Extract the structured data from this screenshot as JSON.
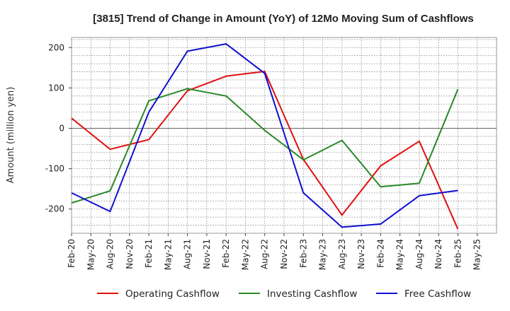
{
  "chart_data": {
    "type": "line",
    "title": "[3815]  Trend of Change in Amount (YoY) of 12Mo Moving Sum of Cashflows",
    "xlabel": "",
    "ylabel": "Amount (million yen)",
    "categories": [
      "Feb-20",
      "May-20",
      "Aug-20",
      "Nov-20",
      "Feb-21",
      "May-21",
      "Aug-21",
      "Nov-21",
      "Feb-22",
      "May-22",
      "Aug-22",
      "Nov-22",
      "Feb-23",
      "May-23",
      "Aug-23",
      "Nov-23",
      "Feb-24",
      "May-24",
      "Aug-24",
      "Nov-24",
      "Feb-25",
      "May-25"
    ],
    "yticks": [
      "200",
      "100",
      "0",
      "-100",
      "-200"
    ],
    "ylim": [
      -260,
      225
    ],
    "grid": true,
    "legend_position": "bottom",
    "series": [
      {
        "name": "Operating Cashflow",
        "color": "#e01010",
        "values": [
          25,
          null,
          -52,
          null,
          -28,
          null,
          93,
          null,
          129,
          null,
          141,
          null,
          -77,
          null,
          -215,
          null,
          -93,
          null,
          -32,
          null,
          -250,
          null
        ]
      },
      {
        "name": "Investing Cashflow",
        "color": "#2a8a2a",
        "values": [
          -185,
          null,
          -155,
          null,
          68,
          null,
          98,
          null,
          80,
          null,
          -5,
          null,
          -78,
          null,
          -30,
          null,
          -145,
          null,
          -136,
          null,
          97,
          null
        ]
      },
      {
        "name": "Free Cashflow",
        "color": "#1010d0",
        "values": [
          -160,
          null,
          -206,
          null,
          40,
          null,
          191,
          null,
          209,
          null,
          136,
          null,
          -160,
          null,
          -245,
          null,
          -237,
          null,
          -167,
          null,
          -154,
          null
        ]
      }
    ]
  }
}
